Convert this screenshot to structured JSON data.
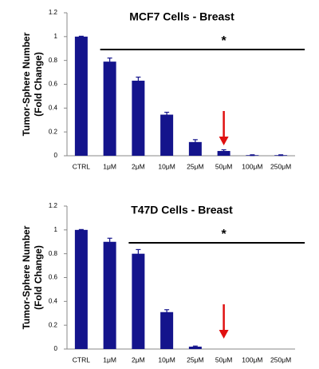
{
  "chart_data": [
    {
      "type": "bar",
      "title": "MCF7 Cells - Breast",
      "ylabel": [
        "Tumor-Sphere Number",
        "(Fold Change)"
      ],
      "categories": [
        "CTRL",
        "1μM",
        "2μM",
        "10μM",
        "25μM",
        "50μM",
        "100μM",
        "250μM"
      ],
      "values": [
        1,
        0.79,
        0.63,
        0.345,
        0.115,
        0.04,
        0.005,
        0.005
      ],
      "errors": [
        0.003,
        0.03,
        0.03,
        0.02,
        0.02,
        0.01,
        0.003,
        0.003
      ],
      "color": "#14148c",
      "ylim": [
        0,
        1.2
      ],
      "yticks": [
        0,
        0.2,
        0.4,
        0.6,
        0.8,
        1,
        1.2
      ],
      "significance": {
        "label": "*",
        "from": "1μM",
        "to": "250μM"
      }
    },
    {
      "type": "bar",
      "title": "T47D Cells - Breast",
      "ylabel": [
        "Tumor-Sphere Number",
        "(Fold Change)"
      ],
      "categories": [
        "CTRL",
        "1μM",
        "2μM",
        "10μM",
        "25μM",
        "50μM",
        "100μM",
        "250μM"
      ],
      "values": [
        1,
        0.9,
        0.8,
        0.31,
        0.02,
        0,
        0,
        0
      ],
      "errors": [
        0.003,
        0.03,
        0.035,
        0.02,
        0.005,
        0,
        0,
        0
      ],
      "color": "#14148c",
      "ylim": [
        0,
        1.2
      ],
      "yticks": [
        0,
        0.2,
        0.4,
        0.6,
        0.8,
        1,
        1.2
      ],
      "significance": {
        "label": "*",
        "from": "2μM",
        "to": "250μM"
      }
    }
  ]
}
